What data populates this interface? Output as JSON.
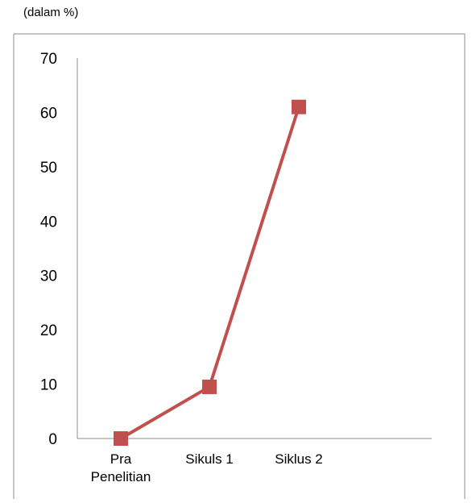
{
  "unit_label": "(dalam %)",
  "chart_data": {
    "type": "line",
    "categories": [
      "Pra Penelitian",
      "Sikuls 1",
      "Siklus 2"
    ],
    "category_lines": [
      [
        "Pra",
        "Penelitian"
      ],
      [
        "Sikuls 1"
      ],
      [
        "Siklus 2"
      ]
    ],
    "series": [
      {
        "values": [
          0,
          9.5,
          61
        ],
        "color": "#c0504d",
        "marker": "square"
      }
    ],
    "ylim": [
      0,
      70
    ],
    "yticks": [
      0,
      10,
      20,
      30,
      40,
      50,
      60,
      70
    ],
    "grid": false,
    "legend": "none"
  }
}
